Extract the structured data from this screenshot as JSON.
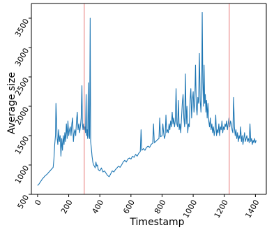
{
  "chart_data": {
    "type": "line",
    "title": "",
    "xlabel": "Timestamp",
    "ylabel": "Average size",
    "xlim": [
      -40,
      1470
    ],
    "ylim": [
      500,
      3750
    ],
    "x_ticks": [
      0,
      200,
      400,
      600,
      800,
      1000,
      1200,
      1400
    ],
    "x_tick_labels": [
      "0",
      "200",
      "400",
      "600",
      "800",
      "1000",
      "1200",
      "1400"
    ],
    "y_ticks": [
      500,
      1000,
      1500,
      2000,
      2500,
      3000,
      3500
    ],
    "y_tick_labels": [
      "500",
      "1000",
      "1500",
      "2000",
      "2500",
      "3000",
      "3500"
    ],
    "tick_label_rotation_deg": 60,
    "grid": false,
    "vertical_lines": [
      {
        "x": 300,
        "color": "#e8807f"
      },
      {
        "x": 1232,
        "color": "#e8807f"
      }
    ],
    "series": [
      {
        "color": "#1f77b4",
        "points": [
          [
            0,
            650
          ],
          [
            10,
            680
          ],
          [
            20,
            720
          ],
          [
            30,
            760
          ],
          [
            40,
            790
          ],
          [
            50,
            820
          ],
          [
            60,
            840
          ],
          [
            70,
            870
          ],
          [
            80,
            900
          ],
          [
            90,
            930
          ],
          [
            100,
            960
          ],
          [
            105,
            1100
          ],
          [
            110,
            1350
          ],
          [
            115,
            1500
          ],
          [
            118,
            2050
          ],
          [
            122,
            1750
          ],
          [
            126,
            1450
          ],
          [
            130,
            1350
          ],
          [
            135,
            1600
          ],
          [
            140,
            1400
          ],
          [
            145,
            1500
          ],
          [
            150,
            1150
          ],
          [
            155,
            1450
          ],
          [
            160,
            1250
          ],
          [
            165,
            1500
          ],
          [
            170,
            1350
          ],
          [
            175,
            1550
          ],
          [
            180,
            1400
          ],
          [
            185,
            1700
          ],
          [
            190,
            1450
          ],
          [
            195,
            1750
          ],
          [
            200,
            1500
          ],
          [
            205,
            1600
          ],
          [
            210,
            1650
          ],
          [
            215,
            1500
          ],
          [
            220,
            1700
          ],
          [
            225,
            1800
          ],
          [
            230,
            1400
          ],
          [
            235,
            1550
          ],
          [
            240,
            1600
          ],
          [
            245,
            1500
          ],
          [
            250,
            1750
          ],
          [
            255,
            1900
          ],
          [
            260,
            1600
          ],
          [
            265,
            1700
          ],
          [
            270,
            1550
          ],
          [
            275,
            1650
          ],
          [
            280,
            1800
          ],
          [
            285,
            2350
          ],
          [
            288,
            1700
          ],
          [
            292,
            1600
          ],
          [
            296,
            1700
          ],
          [
            300,
            1600
          ],
          [
            304,
            1650
          ],
          [
            308,
            1550
          ],
          [
            312,
            2200
          ],
          [
            315,
            1500
          ],
          [
            318,
            1600
          ],
          [
            322,
            1450
          ],
          [
            326,
            2400
          ],
          [
            330,
            1500
          ],
          [
            334,
            1450
          ],
          [
            338,
            3500
          ],
          [
            341,
            1400
          ],
          [
            345,
            1300
          ],
          [
            350,
            1150
          ],
          [
            355,
            1050
          ],
          [
            360,
            1000
          ],
          [
            365,
            980
          ],
          [
            370,
            950
          ],
          [
            375,
            1050
          ],
          [
            380,
            980
          ],
          [
            385,
            1000
          ],
          [
            390,
            920
          ],
          [
            400,
            900
          ],
          [
            410,
            950
          ],
          [
            420,
            880
          ],
          [
            430,
            900
          ],
          [
            440,
            860
          ],
          [
            450,
            820
          ],
          [
            460,
            800
          ],
          [
            470,
            850
          ],
          [
            480,
            900
          ],
          [
            490,
            880
          ],
          [
            500,
            920
          ],
          [
            510,
            950
          ],
          [
            520,
            980
          ],
          [
            530,
            960
          ],
          [
            540,
            1000
          ],
          [
            550,
            1050
          ],
          [
            560,
            1080
          ],
          [
            570,
            1050
          ],
          [
            580,
            1100
          ],
          [
            590,
            1120
          ],
          [
            600,
            1100
          ],
          [
            610,
            1150
          ],
          [
            620,
            1130
          ],
          [
            630,
            1180
          ],
          [
            640,
            1150
          ],
          [
            650,
            1200
          ],
          [
            660,
            1230
          ],
          [
            665,
            1600
          ],
          [
            670,
            1250
          ],
          [
            680,
            1280
          ],
          [
            690,
            1250
          ],
          [
            700,
            1300
          ],
          [
            710,
            1320
          ],
          [
            720,
            1300
          ],
          [
            730,
            1350
          ],
          [
            740,
            1370
          ],
          [
            745,
            1700
          ],
          [
            750,
            1380
          ],
          [
            760,
            1400
          ],
          [
            770,
            1430
          ],
          [
            780,
            1450
          ],
          [
            785,
            1800
          ],
          [
            790,
            1480
          ],
          [
            800,
            1500
          ],
          [
            805,
            1700
          ],
          [
            810,
            1550
          ],
          [
            815,
            1450
          ],
          [
            820,
            1500
          ],
          [
            825,
            1850
          ],
          [
            830,
            1550
          ],
          [
            835,
            1600
          ],
          [
            840,
            1550
          ],
          [
            845,
            1700
          ],
          [
            850,
            1600
          ],
          [
            855,
            1750
          ],
          [
            860,
            1650
          ],
          [
            865,
            1900
          ],
          [
            870,
            1700
          ],
          [
            875,
            1800
          ],
          [
            880,
            1650
          ],
          [
            885,
            1750
          ],
          [
            890,
            2300
          ],
          [
            895,
            1700
          ],
          [
            900,
            1650
          ],
          [
            905,
            2100
          ],
          [
            910,
            1600
          ],
          [
            915,
            1700
          ],
          [
            920,
            1550
          ],
          [
            925,
            1800
          ],
          [
            930,
            2050
          ],
          [
            935,
            2200
          ],
          [
            940,
            1800
          ],
          [
            945,
            1650
          ],
          [
            950,
            2550
          ],
          [
            955,
            1700
          ],
          [
            960,
            2000
          ],
          [
            965,
            1550
          ],
          [
            970,
            1700
          ],
          [
            975,
            1650
          ],
          [
            980,
            2100
          ],
          [
            985,
            2300
          ],
          [
            990,
            1800
          ],
          [
            995,
            2100
          ],
          [
            1000,
            2250
          ],
          [
            1005,
            1900
          ],
          [
            1010,
            2050
          ],
          [
            1015,
            2700
          ],
          [
            1020,
            2000
          ],
          [
            1025,
            1850
          ],
          [
            1030,
            2150
          ],
          [
            1035,
            2050
          ],
          [
            1040,
            2900
          ],
          [
            1045,
            2100
          ],
          [
            1050,
            1900
          ],
          [
            1055,
            2300
          ],
          [
            1058,
            3600
          ],
          [
            1062,
            2400
          ],
          [
            1066,
            2000
          ],
          [
            1070,
            2700
          ],
          [
            1074,
            2050
          ],
          [
            1078,
            2200
          ],
          [
            1082,
            1900
          ],
          [
            1086,
            2100
          ],
          [
            1090,
            1800
          ],
          [
            1095,
            2050
          ],
          [
            1100,
            1750
          ],
          [
            1105,
            1650
          ],
          [
            1110,
            1800
          ],
          [
            1115,
            1600
          ],
          [
            1120,
            1700
          ],
          [
            1125,
            1550
          ],
          [
            1130,
            1650
          ],
          [
            1135,
            1500
          ],
          [
            1140,
            1600
          ],
          [
            1145,
            1850
          ],
          [
            1150,
            1500
          ],
          [
            1155,
            1600
          ],
          [
            1160,
            1550
          ],
          [
            1165,
            1700
          ],
          [
            1170,
            1500
          ],
          [
            1175,
            1650
          ],
          [
            1180,
            1600
          ],
          [
            1185,
            1750
          ],
          [
            1190,
            1550
          ],
          [
            1195,
            1650
          ],
          [
            1200,
            1600
          ],
          [
            1205,
            1700
          ],
          [
            1210,
            1650
          ],
          [
            1215,
            1750
          ],
          [
            1220,
            1600
          ],
          [
            1225,
            1700
          ],
          [
            1230,
            1800
          ],
          [
            1235,
            1650
          ],
          [
            1240,
            1750
          ],
          [
            1245,
            1700
          ],
          [
            1250,
            1600
          ],
          [
            1255,
            1550
          ],
          [
            1260,
            2150
          ],
          [
            1265,
            1650
          ],
          [
            1270,
            1500
          ],
          [
            1275,
            1600
          ],
          [
            1280,
            1450
          ],
          [
            1285,
            1550
          ],
          [
            1290,
            1400
          ],
          [
            1295,
            1500
          ],
          [
            1300,
            1450
          ],
          [
            1305,
            1650
          ],
          [
            1310,
            1400
          ],
          [
            1315,
            1500
          ],
          [
            1320,
            1350
          ],
          [
            1325,
            1450
          ],
          [
            1330,
            1550
          ],
          [
            1335,
            1400
          ],
          [
            1340,
            1450
          ],
          [
            1345,
            1500
          ],
          [
            1350,
            1400
          ],
          [
            1355,
            1450
          ],
          [
            1360,
            1380
          ],
          [
            1365,
            1700
          ],
          [
            1370,
            1400
          ],
          [
            1375,
            1450
          ],
          [
            1380,
            1350
          ],
          [
            1385,
            1420
          ],
          [
            1390,
            1380
          ],
          [
            1395,
            1450
          ],
          [
            1400,
            1380
          ],
          [
            1405,
            1420
          ]
        ]
      }
    ]
  }
}
